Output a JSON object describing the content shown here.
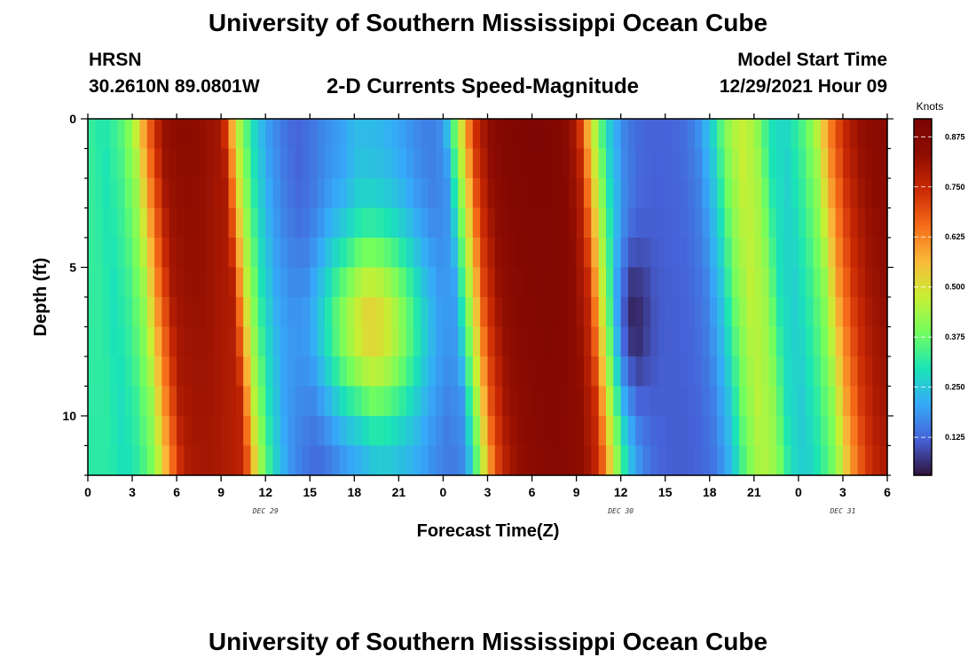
{
  "header": {
    "title": "University of Southern Mississippi Ocean Cube",
    "station": "HRSN",
    "coordinates": "30.2610N  89.0801W",
    "subtitle": "2-D Currents Speed-Magnitude",
    "model_start_label": "Model Start Time",
    "model_start_time": "12/29/2021 Hour 09"
  },
  "footer": {
    "title": "University of Southern Mississippi Ocean Cube"
  },
  "chart_data": {
    "type": "heatmap",
    "title": "2-D Currents Speed-Magnitude",
    "xlabel": "Forecast Time(Z)",
    "ylabel": "Depth (ft)",
    "x_tick_labels": [
      "0",
      "3",
      "6",
      "9",
      "12",
      "15",
      "18",
      "21",
      "0",
      "3",
      "6",
      "9",
      "12",
      "15",
      "18",
      "21",
      "0",
      "3",
      "6"
    ],
    "x_ticks_hours": [
      0,
      3,
      6,
      9,
      12,
      15,
      18,
      21,
      24,
      27,
      30,
      33,
      36,
      39,
      42,
      45,
      48,
      51,
      54
    ],
    "xlim_hours": [
      0,
      54
    ],
    "date_labels": [
      {
        "label": "DEC 29",
        "hour": 12
      },
      {
        "label": "DEC 30",
        "hour": 36
      },
      {
        "label": "DEC 31",
        "hour": 51
      }
    ],
    "y_tick_labels": [
      "0",
      "5",
      "10"
    ],
    "y_ticks": [
      0,
      5,
      10
    ],
    "ylim": [
      0,
      12
    ],
    "y_reversed": true,
    "colorbar": {
      "unit": "Knots",
      "ticks": [
        "0.125",
        "0.250",
        "0.375",
        "0.500",
        "0.625",
        "0.750",
        "0.875"
      ],
      "tick_values": [
        0.125,
        0.25,
        0.375,
        0.5,
        0.625,
        0.75,
        0.875
      ],
      "range": [
        0.03,
        0.92
      ],
      "colormap": "turbo"
    },
    "speed_profile_surface_knots": [
      [
        0,
        0.33
      ],
      [
        1,
        0.3
      ],
      [
        2,
        0.34
      ],
      [
        3,
        0.43
      ],
      [
        4,
        0.65
      ],
      [
        5,
        0.82
      ],
      [
        6,
        0.84
      ],
      [
        7,
        0.84
      ],
      [
        8,
        0.82
      ],
      [
        9,
        0.8
      ],
      [
        10,
        0.48
      ],
      [
        11,
        0.3
      ],
      [
        12,
        0.2
      ],
      [
        13,
        0.15
      ],
      [
        14,
        0.12
      ],
      [
        15,
        0.14
      ],
      [
        16,
        0.17
      ],
      [
        17,
        0.19
      ],
      [
        18,
        0.23
      ],
      [
        19,
        0.23
      ],
      [
        20,
        0.22
      ],
      [
        21,
        0.2
      ],
      [
        22,
        0.17
      ],
      [
        23,
        0.15
      ],
      [
        24,
        0.18
      ],
      [
        25,
        0.45
      ],
      [
        26,
        0.72
      ],
      [
        27,
        0.84
      ],
      [
        28,
        0.88
      ],
      [
        29,
        0.9
      ],
      [
        30,
        0.91
      ],
      [
        31,
        0.9
      ],
      [
        32,
        0.87
      ],
      [
        33,
        0.78
      ],
      [
        34,
        0.5
      ],
      [
        35,
        0.28
      ],
      [
        36,
        0.17
      ],
      [
        37,
        0.13
      ],
      [
        38,
        0.12
      ],
      [
        39,
        0.12
      ],
      [
        40,
        0.13
      ],
      [
        41,
        0.16
      ],
      [
        42,
        0.25
      ],
      [
        43,
        0.4
      ],
      [
        44,
        0.48
      ],
      [
        45,
        0.44
      ],
      [
        46,
        0.3
      ],
      [
        47,
        0.27
      ],
      [
        48,
        0.33
      ],
      [
        49,
        0.42
      ],
      [
        50,
        0.62
      ],
      [
        51,
        0.75
      ],
      [
        52,
        0.82
      ],
      [
        53,
        0.85
      ],
      [
        54,
        0.87
      ]
    ]
  }
}
